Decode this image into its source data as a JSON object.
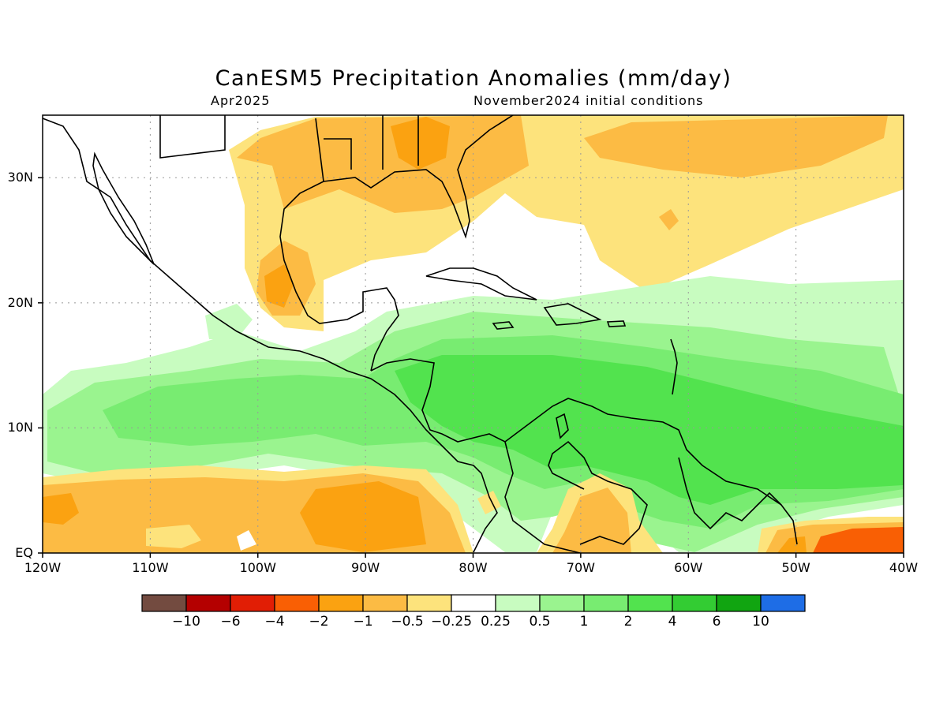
{
  "title": "CanESM5 Precipitation Anomalies (mm/day)",
  "subtitle_left": "Apr2025",
  "subtitle_right": "November2024 initial conditions",
  "axes": {
    "lat_labels": [
      {
        "text": "30N",
        "lat": 30
      },
      {
        "text": "20N",
        "lat": 20
      },
      {
        "text": "10N",
        "lat": 10
      },
      {
        "text": "EQ",
        "lat": 0
      }
    ],
    "lon_labels": [
      {
        "text": "120W",
        "lon": -120
      },
      {
        "text": "110W",
        "lon": -110
      },
      {
        "text": "100W",
        "lon": -100
      },
      {
        "text": "90W",
        "lon": -90
      },
      {
        "text": "80W",
        "lon": -80
      },
      {
        "text": "70W",
        "lon": -70
      },
      {
        "text": "60W",
        "lon": -60
      },
      {
        "text": "50W",
        "lon": -50
      },
      {
        "text": "40W",
        "lon": -40
      }
    ],
    "lon_range": [
      -120,
      -40
    ],
    "lat_range": [
      0,
      35
    ],
    "grid": true
  },
  "colorbar": {
    "colors": [
      "#734b40",
      "#b40000",
      "#e11e05",
      "#f95f04",
      "#fba211",
      "#fcbb44",
      "#fde37c",
      "#ffffff",
      "#c8fcc0",
      "#9af48f",
      "#78ec71",
      "#52e34e",
      "#33cc33",
      "#11a511",
      "#1e6de6"
    ],
    "labels": [
      "−10",
      "−6",
      "−4",
      "−2",
      "−1",
      "−0.5",
      "−0.25",
      "0.25",
      "0.5",
      "1",
      "2",
      "4",
      "6",
      "10"
    ]
  },
  "colors": {
    "neg_light": "#fde37c",
    "neg_mid": "#fcbb44",
    "neg_strong": "#fba211",
    "neg_stronger": "#f95f04",
    "pos_light": "#c8fcc0",
    "pos_mid": "#9af48f",
    "pos_strong": "#78ec71",
    "pos_stronger": "#52e34e"
  }
}
